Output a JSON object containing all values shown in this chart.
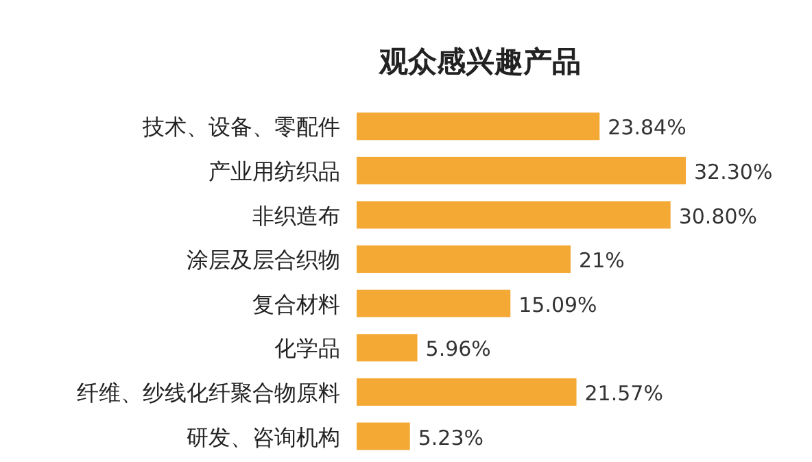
{
  "chart_data": {
    "type": "bar",
    "orientation": "horizontal",
    "title": "观众感兴趣产品",
    "categories": [
      "技术、设备、零配件",
      "产业用纺织品",
      "非织造布",
      "涂层及层合织物",
      "复合材料",
      "化学品",
      "纤维、纱线化纤聚合物原料",
      "研发、咨询机构"
    ],
    "values": [
      23.84,
      32.3,
      30.8,
      21,
      15.09,
      5.96,
      21.57,
      5.23
    ],
    "value_labels": [
      "23.84%",
      "32.30%",
      "30.80%",
      "21%",
      "15.09%",
      "5.96%",
      "21.57%",
      "5.23%"
    ],
    "color": "#f4a934"
  }
}
